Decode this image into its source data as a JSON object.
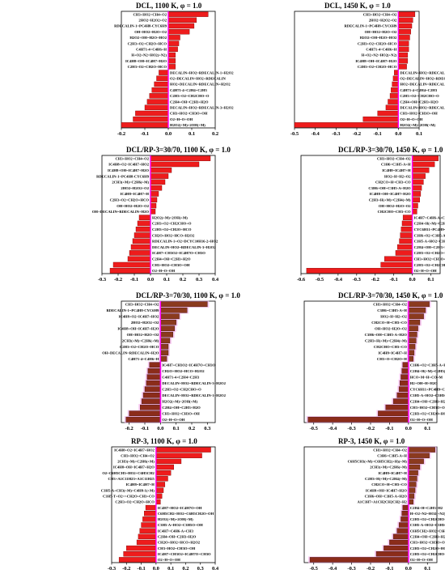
{
  "chart_data": [
    {
      "type": "bar",
      "title": "DCL, 1100 K, φ = 1.0",
      "style": "red",
      "xlim": [
        -0.2,
        0.2
      ],
      "xticks": [
        "-0.2",
        "-0.1",
        "0.0",
        "0.1",
        "0.2"
      ],
      "categories": [
        "CH3+HO2=CH4+O2",
        "2HO2=H2O2+O2",
        "RDECALIN-1=PC4H8-CYC6H9",
        "OH+HO2=H2O+O2",
        "H2O2+OH=H2O+HO2",
        "C2H3+O2=CH2O+HCO",
        "C4H71-4=C4H6+H",
        "H+O2+N2=HO2(+N2)",
        "IC4H8+OH=IC4H7+H2O",
        "C2H3+O2=CH2O+HCO",
        "DECALIN+HO2=RDECALIN-1+H2O2",
        "O2+DECALIN=HO2+RDECALIN",
        "HO2+DECALIN=RDECALIN+H2O2",
        "C4H71-4+C2H4=C2H3",
        "C2H3+O2=CH2CHO+O",
        "C2H4+OH=C2H3+H2O",
        "DECALIN+HO2=RDECALIN-3+H2O2",
        "CH3+HO2=CH3O+OH",
        "O2+H=O+OH",
        "H2O2(+M)=2OH(+M)"
      ],
      "values": [
        0.17,
        0.12,
        0.11,
        0.09,
        0.05,
        0.045,
        0.04,
        0.03,
        0.03,
        0.03,
        -0.04,
        -0.05,
        -0.06,
        -0.07,
        -0.08,
        -0.09,
        -0.1,
        -0.14,
        -0.15,
        -0.2
      ]
    },
    {
      "type": "bar",
      "title": "DCL, 1450 K, φ = 1.0",
      "style": "red",
      "xlim": [
        -0.5,
        0.1
      ],
      "xticks": [
        "-0.5",
        "-0.4",
        "-0.3",
        "-0.2",
        "-0.1",
        "0.0",
        "0.1"
      ],
      "categories": [
        "CH3+HO2=CH4+O2",
        "2HO2=H2O2+O2",
        "RDECALIN-1=PC4H8-CYC6H9",
        "OH+HO2=H2O+O2",
        "H2O2+OH=H2O+HO2",
        "C2H3+O2=CH2O+HCO",
        "C4H71-4=C4H6+H",
        "H+O2+N2=HO2(+N2)",
        "IC4H8+OH=IC4H7+H2O",
        "C2H3+O2=CH2O+HCO",
        "DECALIN+HO2=RDECALIN-1+H2O2",
        "O2+DECALIN=HO2+RDECALIN",
        "HO2+DECALIN=RDECALIN+H2O2",
        "C4H71-4+C2H4=C2H3",
        "C2H3+O2=CH2CHO+O",
        "C2H4+OH=C2H3+H2O",
        "DECALIN+HO2=RDECALIN-3+H2O2",
        "CH3+HO2=CH3O+OH",
        "O2+H=O+OH",
        "H2O2(+M)=2OH(+M)"
      ],
      "values": [
        0.08,
        0.07,
        0.065,
        0.06,
        0.055,
        0.05,
        0.05,
        0.045,
        0.045,
        0.04,
        -0.02,
        -0.025,
        -0.03,
        -0.035,
        -0.04,
        -0.05,
        -0.06,
        -0.1,
        -0.17,
        -0.5
      ]
    },
    {
      "type": "bar",
      "title": "DCL/RP-3=30/70, 1100 K, φ = 1.0",
      "style": "red",
      "xlim": [
        -0.3,
        0.4
      ],
      "xticks": [
        "-0.3",
        "-0.2",
        "-0.1",
        "0.0",
        "0.1",
        "0.2",
        "0.3",
        "0.4"
      ],
      "categories": [
        "CH3+HO2=CH4+O2",
        "IC4H8+O2=IC4H7+HO2",
        "IC4H8+OH=IC4H7+H2O",
        "RDECALIN-1=PC4H8-CYC6H9",
        "2CH3(+M)=C2H6(+M)",
        "2HO2=H2O2+O2",
        "IC4H8=IC4H7+H",
        "C2H3+O2=CH2O+HCO",
        "OH+HO2=H2O+O2",
        "OH+DECALIN=RDECALIN+H2O",
        "H2O2(+M)=2OH(+M)",
        "C2H3+O2=CH2CHO+O",
        "C2H3+O2=CH2O+HCO",
        "CH2O+HO2=HCO+H2O2",
        "RDECALIN-1+O2=DCYC10H16-2+HO2",
        "DECALIN+HO2=RDECALIN-3+H2O2",
        "IC4H7+CH3O2=IC4H7O+CH3O",
        "C2H4+OH=C2H3+H2O",
        "CH3+HO2=CH3O+OH",
        "O2+H=O+OH"
      ],
      "values": [
        0.37,
        0.3,
        0.13,
        0.11,
        0.09,
        0.07,
        0.05,
        0.04,
        0.035,
        0.03,
        -0.07,
        -0.08,
        -0.09,
        -0.1,
        -0.11,
        -0.12,
        -0.13,
        -0.14,
        -0.23,
        -0.25
      ]
    },
    {
      "type": "bar",
      "title": "DCL/RP-3=30/70, 1450 K, φ = 1.0",
      "style": "red",
      "xlim": [
        -0.6,
        0.15
      ],
      "xticks": [
        "-0.6",
        "-0.5",
        "-0.4",
        "-0.3",
        "-0.2",
        "-0.1",
        "0.0",
        "0.1"
      ],
      "categories": [
        "CH3+HO2=CH4+O2",
        "C3H6=C3H5-A+H",
        "IC4H8=IC4H7+H",
        "HO2+H=H2+O2",
        "CH2CO+H=CH3+CO",
        "C3H6+OH=C3H5-A+H2O",
        "IC4H8+OH=IC4H7+H2O",
        "C2H3+H(+M)=C2H4(+M)",
        "OH+HO2=H2O+O2",
        "CH2CHO=CH3+CO",
        "IC4H7=C4H6-A+CH3",
        "C2H4+H(+M)=C2H5(+M)",
        "CYC6H11+PC4H9=C4H8+CYC6H11",
        "C3H6+O2=C3H5-A+HO2",
        "C3H5-A+HO2=C3H5O+OH",
        "C2H4+OH=C2H3+H2O",
        "C2H3+O2=CH2O+HCO",
        "CH3+HO2=CH3O+OH",
        "C2H3+O2=CH2CHO+O",
        "O2+H=O+OH"
      ],
      "values": [
        0.14,
        0.12,
        0.09,
        0.07,
        0.06,
        0.05,
        0.045,
        0.04,
        0.03,
        0.025,
        -0.05,
        -0.055,
        -0.06,
        -0.065,
        -0.07,
        -0.08,
        -0.09,
        -0.15,
        -0.17,
        -0.57
      ]
    },
    {
      "type": "bar",
      "title": "DCL/RP-3=70/30, 1100 K, φ = 1.0",
      "style": "dark",
      "xlim": [
        -0.25,
        0.35
      ],
      "xticks": [
        "-0.2",
        "-0.1",
        "0.0",
        "0.1",
        "0.2",
        "0.3"
      ],
      "categories": [
        "CH3+HO2=CH4+O2",
        "RDECALIN-1=PC4H8-CYC6H9",
        "IC4H8+O2=IC4H7+HO2",
        "2HO2=H2O2+O2",
        "IC4H8+OH=IC4H7+H2O",
        "OH+HO2=H2O+O2",
        "2CH3(+M)=C2H6(+M)",
        "C2H3+O2=CH2O+HCO",
        "OH+DECALIN=RDECALIN+H2O",
        "C4H71-4=C4H6+H",
        "IC4H7+CH3O2=IC4H7O+CH3O",
        "CH2O+HO2=HCO+H2O2",
        "C4H71-4+C2H4=C2H3",
        "DECALIN+HO2=RDECALIN-3+H2O2",
        "C2H3+O2=CH2CHO+O",
        "DECALIN+HO2=RDECALIN-1+H2O2",
        "H2O2(+M)=2OH(+M)",
        "C2H4+OH=C2H3+H2O",
        "CH3+HO2=CH3O+OH",
        "O2+H=O+OH"
      ],
      "values": [
        0.3,
        0.17,
        0.12,
        0.1,
        0.09,
        0.08,
        0.06,
        0.05,
        0.05,
        0.04,
        -0.07,
        -0.08,
        -0.085,
        -0.09,
        -0.1,
        -0.11,
        -0.12,
        -0.13,
        -0.2,
        -0.22
      ]
    },
    {
      "type": "bar",
      "title": "DCL/RP-3=70/30, 1450 K, φ = 1.0",
      "style": "dark",
      "xlim": [
        -0.55,
        0.15
      ],
      "xticks": [
        "-0.5",
        "-0.4",
        "-0.3",
        "-0.2",
        "-0.1",
        "0.0",
        "0.1"
      ],
      "categories": [
        "CH3+HO2=CH4+O2",
        "C3H6=C3H5-A+H",
        "HO2+H=H2+O2",
        "CH2CO+H=CH3+CO",
        "OH+HO2=H2O+O2",
        "C3H6+OH=C3H5-A+H2O",
        "C2H3+H(+M)=C2H4(+M)",
        "CH2CHO=CH3+CO",
        "IC4H8=IC4H7+H",
        "CH3+O=CH2O+H",
        "C3H6+O2=C3H5-A+HO2",
        "C2H4+H(+M)=C2H5(+M)",
        "HCO+M=H+CO+M",
        "H2+OH=H+H2O",
        "CYC6H11+PC4H9=C4H8+CYC6H11",
        "C3H5-A+HO2=C3H5O+OH",
        "C2H4+OH=C2H3+H2O",
        "CH3+HO2=CH3O+OH",
        "C2H3+O2=CH2O+HCO",
        "O2+H=O+OH"
      ],
      "values": [
        0.11,
        0.09,
        0.08,
        0.06,
        0.05,
        0.045,
        0.04,
        0.035,
        0.03,
        0.025,
        -0.03,
        -0.035,
        -0.04,
        -0.045,
        -0.05,
        -0.06,
        -0.08,
        -0.12,
        -0.16,
        -0.53
      ]
    },
    {
      "type": "bar",
      "title": "RP-3, 1100 K, φ = 1.0",
      "style": "red",
      "xlim": [
        -0.3,
        0.4
      ],
      "xticks": [
        "-0.3",
        "-0.2",
        "-0.1",
        "0.0",
        "0.1",
        "0.2",
        "0.3",
        "0.4"
      ],
      "categories": [
        "IC4H8+O2=IC4H7+HO2",
        "CH3+HO2=CH4+O2",
        "2CH3(+M)=C2H6(+M)",
        "IC4H8+OH=IC4H7+H2O",
        "O2+C6H5CH3=HO2+C6H5CH2",
        "CH3+A1C11H23=A1C11H25",
        "IC4H8=IC4H7+H",
        "C3H5-A+CH3(+M)=C4H8-1(+M)",
        "C3H5-T+O2=>CH2O+CH3+CO",
        "C2H3+O2=CH2O+HCO",
        "IC4H7+HO2=IC4H7O+OH",
        "C6H5CH2+HO2=C6H5CH2O+OH",
        "H2O2(+M)=2OH(+M)",
        "C3H5-A+HO2=C3H5O+OH",
        "IC4H7=C4H6-A+CH3",
        "C2H4+OH=C2H3+H2O",
        "CH2O+HO2=HCO+H2O2",
        "CH3+HO2=CH3O+OH",
        "IC4H7+CH3O2=IC4H7O+CH3O",
        "O2+H=O+OH"
      ],
      "values": [
        0.37,
        0.31,
        0.17,
        0.12,
        0.1,
        0.08,
        0.06,
        0.05,
        0.04,
        0.03,
        -0.07,
        -0.08,
        -0.09,
        -0.1,
        -0.11,
        -0.12,
        -0.13,
        -0.2,
        -0.22,
        -0.25
      ]
    },
    {
      "type": "bar",
      "title": "RP-3, 1450 K, φ = 1.0",
      "style": "dark",
      "xlim": [
        -0.55,
        0.15
      ],
      "xticks": [
        "-0.5",
        "-0.4",
        "-0.3",
        "-0.2",
        "-0.1",
        "0.0",
        "0.1"
      ],
      "categories": [
        "CH3+HO2=CH4+O2",
        "C3H6=C3H5-A+H",
        "C6H5CH3(+M)=C6H5CH2(+H)(+M)",
        "2CH3(+M)=C2H6(+M)",
        "IC4H8=IC4H7+H",
        "C2H3+H(+M)=C2H4(+M)",
        "CH2CO+H=CH3+CO",
        "IC4H8+OH=IC4H7+H2O",
        "C3H6+OH=C3H5-A+H2O",
        "A1C3H7=A1CH2CH2CH2+H2",
        "C2H4+H=C2H3+H2",
        "H+O2+N2=HO2(+N2)",
        "C2H3+O2=CH2CHO+O",
        "C3H5-A+HO2=C3H5O+OH",
        "C6H5CH2+HO2=C6H5CH2O+OH",
        "C2H4+OH=C2H3+H2O",
        "CH3+HO2=CH3O+OH",
        "C2H3+O2=CH2O+HCO",
        "C2H3+O2=CH2CHO+O",
        "O2+H=O+OH"
      ],
      "values": [
        0.14,
        0.11,
        0.08,
        0.06,
        0.05,
        0.045,
        0.04,
        0.035,
        0.03,
        0.025,
        -0.03,
        -0.035,
        -0.04,
        -0.05,
        -0.06,
        -0.08,
        -0.1,
        -0.13,
        -0.17,
        -0.52
      ]
    }
  ]
}
